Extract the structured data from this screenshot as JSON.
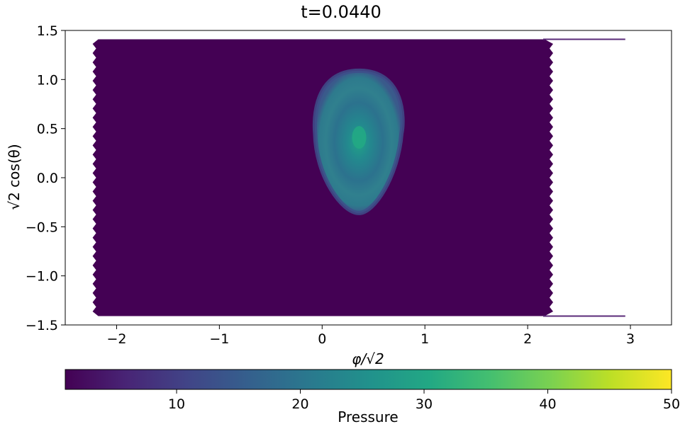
{
  "chart_data": {
    "type": "heatmap",
    "title": "t=0.0440",
    "xlabel": "φ/√2",
    "ylabel": "√2 cos(θ)",
    "xlim": [
      -2.5,
      3.4
    ],
    "ylim": [
      -1.5,
      1.5
    ],
    "xticks": [
      -2,
      -1,
      0,
      1,
      2,
      3
    ],
    "xtick_labels": [
      "−2",
      "−1",
      "0",
      "1",
      "2",
      "3"
    ],
    "yticks": [
      1.5,
      1.0,
      0.5,
      0.0,
      -0.5,
      -1.0,
      -1.5
    ],
    "ytick_labels": [
      "1.5",
      "1.0",
      "0.5",
      "0.0",
      "−0.5",
      "−1.0",
      "−1.5"
    ],
    "grid": false,
    "colormap": "viridis",
    "domain": {
      "x_min": -2.22,
      "x_max": 2.22,
      "y_min": -1.41,
      "y_max": 1.41
    },
    "background_value": 1,
    "pressure_blob": {
      "center_x": 0.36,
      "center_y": 0.41,
      "peak_value": 29,
      "edge_value": 18,
      "x_radius": 0.42,
      "y_top": 1.09,
      "y_bottom": -0.36
    },
    "colorbar": {
      "label": "Pressure",
      "min": 1,
      "max": 50,
      "ticks": [
        10,
        20,
        30,
        40,
        50
      ],
      "tick_labels": [
        "10",
        "20",
        "30",
        "40",
        "50"
      ]
    }
  }
}
